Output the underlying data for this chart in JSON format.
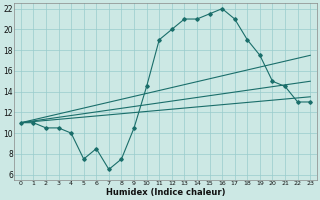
{
  "xlabel": "Humidex (Indice chaleur)",
  "bg_color": "#cce8e4",
  "grid_color": "#99cccc",
  "line_color": "#1a6e6a",
  "xlim": [
    -0.5,
    23.5
  ],
  "ylim": [
    5.5,
    22.5
  ],
  "xticks": [
    0,
    1,
    2,
    3,
    4,
    5,
    6,
    7,
    8,
    9,
    10,
    11,
    12,
    13,
    14,
    15,
    16,
    17,
    18,
    19,
    20,
    21,
    22,
    23
  ],
  "yticks": [
    6,
    8,
    10,
    12,
    14,
    16,
    18,
    20,
    22
  ],
  "curve1_x": [
    0,
    1,
    2,
    3,
    4,
    5,
    6,
    7,
    8,
    9,
    10,
    11,
    12,
    13,
    14,
    15,
    16,
    17,
    18,
    19,
    20,
    21,
    22,
    23
  ],
  "curve1_y": [
    11,
    11,
    10.5,
    10.5,
    10,
    7.5,
    8.5,
    6.5,
    7.5,
    10.5,
    14.5,
    19,
    20,
    21,
    21,
    21.5,
    22,
    21,
    19,
    17.5,
    15,
    14.5,
    13,
    13
  ],
  "curve2_x": [
    0,
    23
  ],
  "curve2_y": [
    11,
    17.5
  ],
  "curve3_x": [
    0,
    23
  ],
  "curve3_y": [
    11,
    15.0
  ],
  "curve4_x": [
    0,
    23
  ],
  "curve4_y": [
    11,
    13.5
  ]
}
